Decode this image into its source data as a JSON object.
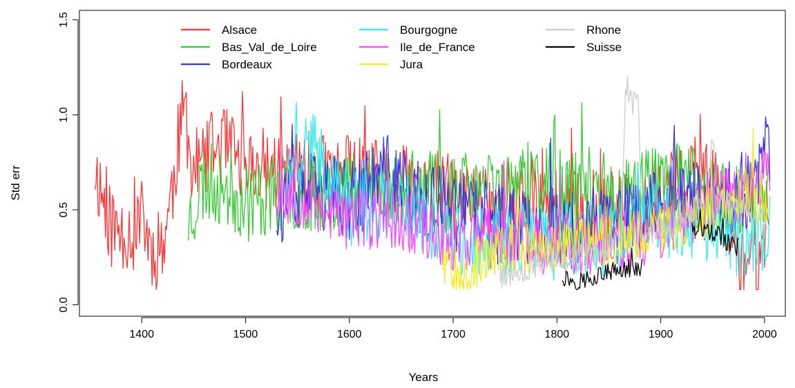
{
  "chart_data": {
    "type": "line",
    "title": "",
    "xlabel": "Years",
    "ylabel": "Std err",
    "xlim": [
      1340,
      2020
    ],
    "ylim": [
      -0.06,
      1.55
    ],
    "x_ticks": [
      1400,
      1500,
      1600,
      1700,
      1800,
      1900,
      2000
    ],
    "y_ticks": [
      0.0,
      0.5,
      1.0,
      1.5
    ],
    "y_tick_labels": [
      "0.0",
      "0.5",
      "1.0",
      "1.5"
    ],
    "legend_position": "top",
    "grid": false,
    "series": [
      {
        "name": "Alsace",
        "color": "#ff3333",
        "x_start": 1355,
        "x_end": 2004,
        "anchors": [
          [
            1355,
            0.72
          ],
          [
            1372,
            0.38
          ],
          [
            1385,
            0.4
          ],
          [
            1396,
            0.36
          ],
          [
            1400,
            0.7
          ],
          [
            1402,
            0.42
          ],
          [
            1410,
            0.28
          ],
          [
            1420,
            0.32
          ],
          [
            1428,
            0.55
          ],
          [
            1435,
            0.85
          ],
          [
            1442,
            1.05
          ],
          [
            1448,
            0.7
          ],
          [
            1460,
            0.75
          ],
          [
            1475,
            0.85
          ],
          [
            1500,
            0.72
          ],
          [
            1550,
            0.7
          ],
          [
            1600,
            0.68
          ],
          [
            1650,
            0.62
          ],
          [
            1690,
            0.6
          ],
          [
            1700,
            0.55
          ],
          [
            1750,
            0.55
          ],
          [
            1800,
            0.5
          ],
          [
            1850,
            0.5
          ],
          [
            1880,
            0.45
          ],
          [
            1900,
            0.6
          ],
          [
            1930,
            0.65
          ],
          [
            1950,
            0.62
          ],
          [
            1965,
            0.45
          ],
          [
            1972,
            0.28
          ],
          [
            1985,
            0.22
          ],
          [
            2000,
            0.28
          ],
          [
            2004,
            0.6
          ]
        ],
        "noise": 0.22,
        "seed": 11
      },
      {
        "name": "Bas_Val_de_Loire",
        "color": "#33cc33",
        "x_start": 1445,
        "x_end": 2004,
        "anchors": [
          [
            1445,
            0.45
          ],
          [
            1460,
            0.65
          ],
          [
            1480,
            0.62
          ],
          [
            1500,
            0.55
          ],
          [
            1550,
            0.6
          ],
          [
            1600,
            0.62
          ],
          [
            1650,
            0.6
          ],
          [
            1700,
            0.58
          ],
          [
            1750,
            0.62
          ],
          [
            1790,
            0.65
          ],
          [
            1800,
            0.6
          ],
          [
            1850,
            0.55
          ],
          [
            1900,
            0.65
          ],
          [
            1950,
            0.6
          ],
          [
            2004,
            0.55
          ]
        ],
        "noise": 0.22,
        "seed": 23
      },
      {
        "name": "Bordeaux",
        "color": "#3333ee",
        "x_start": 1530,
        "x_end": 2005,
        "anchors": [
          [
            1530,
            0.5
          ],
          [
            1560,
            0.6
          ],
          [
            1600,
            0.55
          ],
          [
            1640,
            0.7
          ],
          [
            1660,
            0.55
          ],
          [
            1700,
            0.5
          ],
          [
            1750,
            0.42
          ],
          [
            1800,
            0.4
          ],
          [
            1850,
            0.4
          ],
          [
            1900,
            0.55
          ],
          [
            1950,
            0.55
          ],
          [
            1990,
            0.6
          ],
          [
            2005,
            0.85
          ]
        ],
        "noise": 0.22,
        "seed": 37
      },
      {
        "name": "Bourgogne",
        "color": "#33eeee",
        "x_start": 1540,
        "x_end": 2005,
        "anchors": [
          [
            1540,
            0.65
          ],
          [
            1560,
            0.85
          ],
          [
            1580,
            0.7
          ],
          [
            1600,
            0.5
          ],
          [
            1650,
            0.55
          ],
          [
            1700,
            0.35
          ],
          [
            1750,
            0.35
          ],
          [
            1800,
            0.32
          ],
          [
            1850,
            0.35
          ],
          [
            1900,
            0.45
          ],
          [
            1950,
            0.42
          ],
          [
            1980,
            0.32
          ],
          [
            2005,
            0.4
          ]
        ],
        "noise": 0.2,
        "seed": 41
      },
      {
        "name": "Ile_de_France",
        "color": "#ff44ff",
        "x_start": 1530,
        "x_end": 2005,
        "anchors": [
          [
            1530,
            0.6
          ],
          [
            1560,
            0.55
          ],
          [
            1600,
            0.45
          ],
          [
            1650,
            0.45
          ],
          [
            1700,
            0.35
          ],
          [
            1750,
            0.35
          ],
          [
            1800,
            0.32
          ],
          [
            1850,
            0.32
          ],
          [
            1900,
            0.4
          ],
          [
            1950,
            0.55
          ],
          [
            1990,
            0.62
          ],
          [
            2005,
            0.7
          ]
        ],
        "noise": 0.17,
        "seed": 53
      },
      {
        "name": "Jura",
        "color": "#eeee22",
        "x_start": 1690,
        "x_end": 2004,
        "anchors": [
          [
            1690,
            0.25
          ],
          [
            1710,
            0.18
          ],
          [
            1750,
            0.3
          ],
          [
            1800,
            0.3
          ],
          [
            1850,
            0.35
          ],
          [
            1900,
            0.4
          ],
          [
            1950,
            0.5
          ],
          [
            1980,
            0.6
          ],
          [
            2004,
            0.55
          ]
        ],
        "noise": 0.14,
        "seed": 67
      },
      {
        "name": "Rhone",
        "color": "#cccccc",
        "x_start": 1745,
        "x_end": 2003,
        "anchors": [
          [
            1745,
            0.15
          ],
          [
            1760,
            0.18
          ],
          [
            1800,
            0.22
          ],
          [
            1840,
            0.28
          ],
          [
            1862,
            0.35
          ],
          [
            1866,
            1.08
          ],
          [
            1878,
            1.05
          ],
          [
            1882,
            0.4
          ],
          [
            1900,
            0.38
          ],
          [
            1945,
            0.55
          ],
          [
            1950,
            0.9
          ],
          [
            1955,
            0.55
          ],
          [
            2003,
            0.45
          ]
        ],
        "noise": 0.07,
        "seed": 79
      },
      {
        "name": "Suisse",
        "color": "#000000",
        "x_start": 1805,
        "x_end": 1975,
        "anchors": [
          [
            1805,
            0.15
          ],
          [
            1820,
            0.12
          ],
          [
            1840,
            0.16
          ],
          [
            1860,
            0.18
          ],
          [
            1880,
            0.2
          ]
        ],
        "gap": [
          1882,
          1930
        ],
        "anchors2": [
          [
            1930,
            0.4
          ],
          [
            1950,
            0.38
          ],
          [
            1975,
            0.3
          ]
        ],
        "noise": 0.05,
        "seed": 97
      }
    ]
  }
}
